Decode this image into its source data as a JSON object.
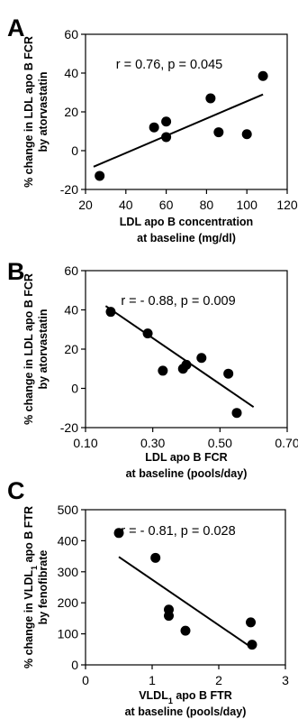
{
  "chart_data": [
    {
      "type": "scatter",
      "panel_label": "A",
      "annotation": "r = 0.76, p = 0.045",
      "xlabel_lines": [
        "LDL apo B concentration",
        "at baseline (mg/dl)"
      ],
      "ylabel_lines": [
        "% change in LDL apo B FCR",
        "by atorvastatin"
      ],
      "xlim": [
        20,
        120
      ],
      "ylim": [
        -20,
        60
      ],
      "xticks": [
        "20",
        "40",
        "60",
        "80",
        "100",
        "120"
      ],
      "yticks": [
        "-20",
        "0",
        "20",
        "40",
        "60"
      ],
      "grid": false,
      "legend": "none",
      "points": [
        {
          "x": 27,
          "y": -13
        },
        {
          "x": 54,
          "y": 12
        },
        {
          "x": 60,
          "y": 15
        },
        {
          "x": 60,
          "y": 7
        },
        {
          "x": 82,
          "y": 27
        },
        {
          "x": 86,
          "y": 9.5
        },
        {
          "x": 100,
          "y": 8.5
        },
        {
          "x": 108,
          "y": 38.5
        }
      ],
      "fit_line": [
        {
          "x": 24,
          "y": -8.3
        },
        {
          "x": 108,
          "y": 29
        }
      ]
    },
    {
      "type": "scatter",
      "panel_label": "B",
      "annotation": "r = - 0.88, p = 0.009",
      "xlabel_lines": [
        "LDL apo B FCR",
        "at baseline (pools/day)"
      ],
      "ylabel_lines": [
        "% change in LDL apo B FCR",
        "by atorvastatin"
      ],
      "xlim": [
        0.1,
        0.7
      ],
      "ylim": [
        -20,
        60
      ],
      "xticks": [
        "0.10",
        "0.30",
        "0.50",
        "0.70"
      ],
      "yticks": [
        "-20",
        "0",
        "20",
        "40",
        "60"
      ],
      "grid": false,
      "legend": "none",
      "points": [
        {
          "x": 0.175,
          "y": 39
        },
        {
          "x": 0.285,
          "y": 28
        },
        {
          "x": 0.33,
          "y": 9
        },
        {
          "x": 0.39,
          "y": 10
        },
        {
          "x": 0.4,
          "y": 12
        },
        {
          "x": 0.445,
          "y": 15.5
        },
        {
          "x": 0.525,
          "y": 7.5
        },
        {
          "x": 0.55,
          "y": -12.5
        }
      ],
      "fit_line": [
        {
          "x": 0.16,
          "y": 42
        },
        {
          "x": 0.6,
          "y": -9.5
        }
      ]
    },
    {
      "type": "scatter",
      "panel_label": "C",
      "annotation": "r = - 0.81, p = 0.028",
      "xlabel_lines": [
        "VLDL",
        "1",
        " apo B FTR",
        "at baseline (pools/day)"
      ],
      "ylabel_lines": [
        "% change in VLDL",
        "1",
        " apo B FTR",
        "by fenofibrate"
      ],
      "xlim": [
        0,
        3
      ],
      "ylim": [
        0,
        500
      ],
      "xticks": [
        "0",
        "1",
        "2",
        "3"
      ],
      "yticks": [
        "0",
        "100",
        "200",
        "300",
        "400",
        "500"
      ],
      "grid": false,
      "legend": "none",
      "points": [
        {
          "x": 0.5,
          "y": 425
        },
        {
          "x": 1.05,
          "y": 345
        },
        {
          "x": 1.25,
          "y": 178
        },
        {
          "x": 1.25,
          "y": 158
        },
        {
          "x": 1.5,
          "y": 110
        },
        {
          "x": 2.48,
          "y": 137
        },
        {
          "x": 2.5,
          "y": 65
        }
      ],
      "fit_line": [
        {
          "x": 0.5,
          "y": 348
        },
        {
          "x": 2.45,
          "y": 62
        }
      ]
    }
  ]
}
